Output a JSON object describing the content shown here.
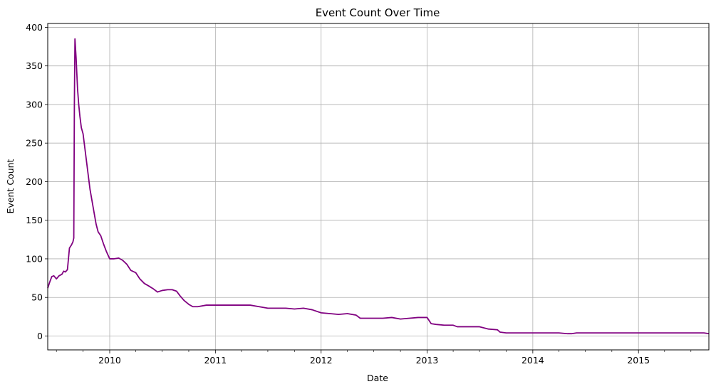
{
  "chart_data": {
    "type": "line",
    "title": "Event Count Over Time",
    "xlabel": "Date",
    "ylabel": "Event Count",
    "x_axis": "date",
    "xlim": [
      "2009-06-01",
      "2015-09-01"
    ],
    "ylim": [
      -18,
      405
    ],
    "x_ticks": [
      "2010",
      "2011",
      "2012",
      "2013",
      "2014",
      "2015"
    ],
    "y_ticks": [
      0,
      50,
      100,
      150,
      200,
      250,
      300,
      350,
      400
    ],
    "grid": true,
    "series": [
      {
        "color": "#800080",
        "x": [
          "2009-06-01",
          "2009-06-08",
          "2009-06-15",
          "2009-06-22",
          "2009-07-01",
          "2009-07-10",
          "2009-07-20",
          "2009-07-26",
          "2009-08-01",
          "2009-08-08",
          "2009-08-15",
          "2009-08-22",
          "2009-08-27",
          "2009-08-30",
          "2009-09-01",
          "2009-09-03",
          "2009-09-07",
          "2009-09-12",
          "2009-09-16",
          "2009-09-20",
          "2009-09-25",
          "2009-10-01",
          "2009-10-05",
          "2009-10-10",
          "2009-10-15",
          "2009-10-20",
          "2009-10-25",
          "2009-11-01",
          "2009-11-08",
          "2009-11-15",
          "2009-11-22",
          "2009-12-01",
          "2009-12-10",
          "2009-12-20",
          "2010-01-01",
          "2010-01-15",
          "2010-02-01",
          "2010-02-15",
          "2010-03-01",
          "2010-03-15",
          "2010-04-01",
          "2010-04-15",
          "2010-05-01",
          "2010-05-15",
          "2010-06-01",
          "2010-06-15",
          "2010-07-01",
          "2010-07-20",
          "2010-08-05",
          "2010-08-20",
          "2010-09-01",
          "2010-09-15",
          "2010-10-01",
          "2010-10-15",
          "2010-11-01",
          "2010-12-01",
          "2011-01-01",
          "2011-03-01",
          "2011-05-01",
          "2011-06-01",
          "2011-07-01",
          "2011-09-01",
          "2011-10-01",
          "2011-11-01",
          "2011-12-01",
          "2012-01-01",
          "2012-02-01",
          "2012-03-01",
          "2012-04-01",
          "2012-05-01",
          "2012-05-15",
          "2012-06-01",
          "2012-08-01",
          "2012-09-01",
          "2012-10-01",
          "2012-11-01",
          "2012-12-01",
          "2013-01-01",
          "2013-01-15",
          "2013-02-01",
          "2013-03-01",
          "2013-04-01",
          "2013-04-15",
          "2013-05-01",
          "2013-06-01",
          "2013-07-01",
          "2013-08-01",
          "2013-09-01",
          "2013-09-10",
          "2013-10-01",
          "2014-01-01",
          "2014-04-01",
          "2014-05-01",
          "2014-05-15",
          "2014-06-01",
          "2014-09-01",
          "2015-01-01",
          "2015-04-01",
          "2015-07-01",
          "2015-08-15",
          "2015-09-01"
        ],
        "values": [
          62,
          70,
          77,
          78,
          74,
          78,
          80,
          84,
          83,
          86,
          114,
          118,
          122,
          127,
          300,
          385,
          360,
          320,
          300,
          285,
          270,
          262,
          250,
          235,
          220,
          205,
          190,
          175,
          160,
          145,
          135,
          130,
          120,
          110,
          100,
          100,
          101,
          98,
          93,
          85,
          82,
          74,
          68,
          65,
          61,
          57,
          59,
          60,
          60,
          58,
          52,
          46,
          41,
          38,
          38,
          40,
          40,
          40,
          40,
          38,
          36,
          36,
          35,
          36,
          34,
          30,
          29,
          28,
          29,
          27,
          23,
          23,
          23,
          24,
          22,
          23,
          24,
          24,
          16,
          15,
          14,
          14,
          12,
          12,
          12,
          12,
          9,
          8,
          5,
          4,
          4,
          4,
          3,
          3,
          4,
          4,
          4,
          4,
          4,
          4,
          3
        ]
      }
    ]
  }
}
